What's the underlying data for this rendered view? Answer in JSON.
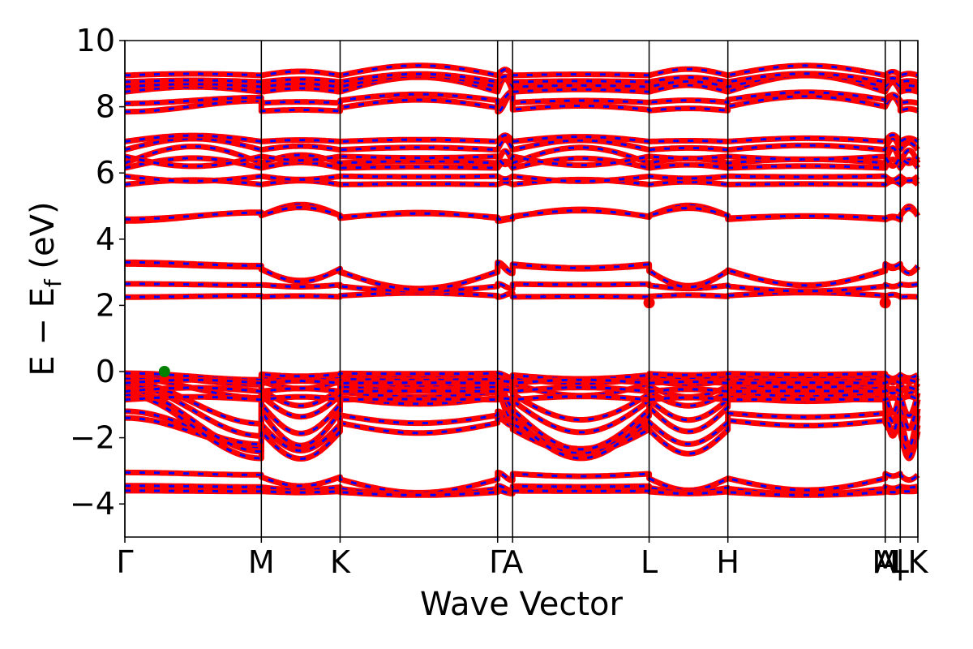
{
  "chart_data": {
    "type": "line",
    "title": "",
    "xlabel": "Wave Vector",
    "ylabel": {
      "main": "E − E",
      "sub": "f",
      "unit": " (eV)"
    },
    "ylim": [
      -5,
      10
    ],
    "yticks": [
      {
        "value": -4,
        "label": "−4"
      },
      {
        "value": -2,
        "label": "−2"
      },
      {
        "value": 0,
        "label": "0"
      },
      {
        "value": 2,
        "label": "2"
      },
      {
        "value": 4,
        "label": "4"
      },
      {
        "value": 6,
        "label": "6"
      },
      {
        "value": 8,
        "label": "8"
      },
      {
        "value": 10,
        "label": "10"
      }
    ],
    "xlim": [
      0,
      5.81
    ],
    "kpoints": [
      {
        "x": 0.0,
        "label": "Γ"
      },
      {
        "x": 1.0,
        "label": "M"
      },
      {
        "x": 1.577,
        "label": "K"
      },
      {
        "x": 2.731,
        "label": "Γ"
      },
      {
        "x": 2.841,
        "label": "A"
      },
      {
        "x": 3.841,
        "label": "L"
      },
      {
        "x": 4.418,
        "label": "H"
      },
      {
        "x": 5.571,
        "label": "A"
      },
      {
        "x": 5.571,
        "label": "M"
      },
      {
        "x": 5.681,
        "label": "|"
      },
      {
        "x": 5.681,
        "label": "L"
      },
      {
        "x": 5.81,
        "label": "K"
      }
    ],
    "series_colors": {
      "spin_up": "#ff0000",
      "spin_down": "#0000ff"
    },
    "markers": [
      {
        "name": "VBM",
        "x": 0.29,
        "y": 0.0,
        "color": "#008000"
      },
      {
        "name": "CBM",
        "x": 3.841,
        "y": 2.08,
        "color": "#ff0000"
      },
      {
        "name": "CBM",
        "x": 5.571,
        "y": 2.08,
        "color": "#ff0000"
      }
    ],
    "bands": [
      {
        "kind": "gamma",
        "center": -3.05,
        "amp": -0.7
      },
      {
        "kind": "gamma",
        "center": -3.45,
        "amp": -0.3
      },
      {
        "kind": "gamma",
        "center": -3.6,
        "amp": -0.15
      },
      {
        "kind": "gamma",
        "center": -1.4,
        "amp": -1.4
      },
      {
        "kind": "gamma",
        "center": -1.2,
        "amp": -1.4
      },
      {
        "kind": "gamma",
        "center": -0.7,
        "amp": -2.15
      },
      {
        "kind": "gamma",
        "center": -0.55,
        "amp": -2.0
      },
      {
        "kind": "gamma",
        "center": -0.4,
        "amp": -1.6
      },
      {
        "kind": "gamma",
        "center": -0.3,
        "amp": -1.3
      },
      {
        "kind": "gamma",
        "center": -0.2,
        "amp": -0.6
      },
      {
        "kind": "gamma",
        "center": -0.1,
        "amp": -0.3
      },
      {
        "kind": "gamma",
        "center": -0.05,
        "amp": -0.2
      },
      {
        "kind": "flat",
        "center": -0.35,
        "amp": 0.1
      },
      {
        "kind": "flat",
        "center": -0.6,
        "amp": 0.12
      },
      {
        "kind": "flat",
        "center": -0.85,
        "amp": 0.1
      },
      {
        "kind": "gamma",
        "center": 2.25,
        "amp": 0.15
      },
      {
        "kind": "gamma",
        "center": 2.65,
        "amp": -0.25
      },
      {
        "kind": "gamma",
        "center": 3.25,
        "amp": -0.85
      },
      {
        "kind": "gamma",
        "center": 3.3,
        "amp": -0.95
      },
      {
        "kind": "gamma",
        "center": 4.55,
        "amp": 0.55
      },
      {
        "kind": "gamma",
        "center": 4.6,
        "amp": 0.4
      },
      {
        "kind": "flat",
        "center": 5.65,
        "amp": 0.15
      },
      {
        "kind": "flat",
        "center": 5.9,
        "amp": -0.15
      },
      {
        "kind": "flat",
        "center": 6.15,
        "amp": 0.3
      },
      {
        "kind": "flat",
        "center": 6.3,
        "amp": 0.5
      },
      {
        "kind": "flat",
        "center": 6.5,
        "amp": -0.3
      },
      {
        "kind": "flat",
        "center": 6.7,
        "amp": 0.35
      },
      {
        "kind": "flat",
        "center": 6.95,
        "amp": 0.2
      },
      {
        "kind": "gamma",
        "center": 7.85,
        "amp": 0.6
      },
      {
        "kind": "gamma",
        "center": 8.1,
        "amp": 0.4
      },
      {
        "kind": "flat",
        "center": 8.45,
        "amp": 0.5
      },
      {
        "kind": "flat",
        "center": 8.6,
        "amp": 0.35
      },
      {
        "kind": "flat",
        "center": 8.75,
        "amp": 0.25
      },
      {
        "kind": "flat",
        "center": 8.95,
        "amp": 0.3
      }
    ]
  }
}
